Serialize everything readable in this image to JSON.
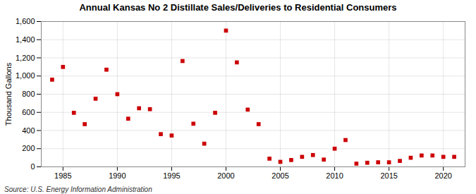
{
  "chart_data": {
    "type": "scatter",
    "title": "Annual Kansas No 2 Distillate Sales/Deliveries to Residential Consumers",
    "ylabel": "Thousand Gallons",
    "source": "Source: U.S. Energy Information Administration",
    "x": [
      1984,
      1985,
      1986,
      1987,
      1988,
      1989,
      1990,
      1991,
      1992,
      1993,
      1994,
      1995,
      1996,
      1997,
      1998,
      1999,
      2000,
      2001,
      2002,
      2003,
      2004,
      2005,
      2006,
      2007,
      2008,
      2009,
      2010,
      2011,
      2012,
      2013,
      2014,
      2015,
      2016,
      2017,
      2018,
      2019,
      2020,
      2021
    ],
    "values": [
      960,
      1100,
      595,
      470,
      750,
      1070,
      800,
      530,
      645,
      635,
      360,
      345,
      1165,
      475,
      255,
      595,
      1500,
      1150,
      630,
      470,
      90,
      55,
      75,
      110,
      130,
      80,
      200,
      295,
      35,
      45,
      50,
      50,
      65,
      100,
      125,
      125,
      110,
      110
    ],
    "color": "#cc0000",
    "marker": "square",
    "xlim": [
      1983,
      2022
    ],
    "ylim": [
      0,
      1600
    ],
    "xticks": [
      1985,
      1990,
      1995,
      2000,
      2005,
      2010,
      2015,
      2020
    ],
    "yticks": [
      0,
      200,
      400,
      600,
      800,
      {
        "value": 1000,
        "label": "1,000"
      },
      {
        "value": 1200,
        "label": "1,200"
      },
      {
        "value": 1400,
        "label": "1,400"
      },
      {
        "value": 1600,
        "label": "1,600"
      }
    ],
    "grid": true
  }
}
